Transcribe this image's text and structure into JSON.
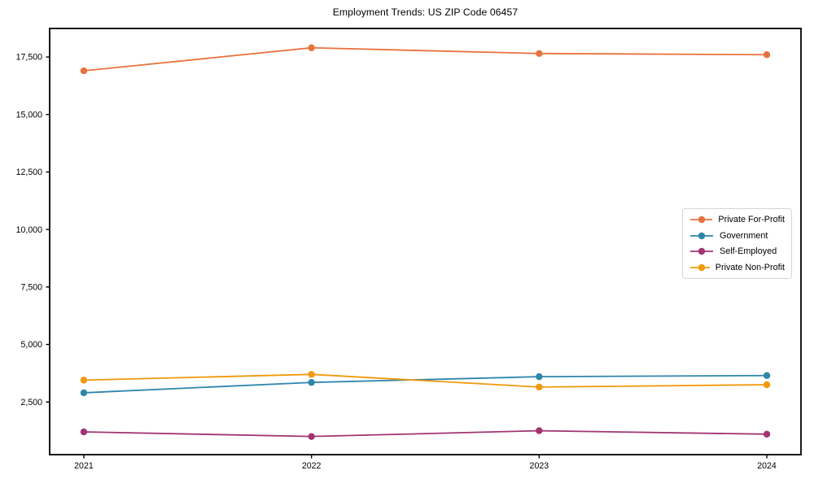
{
  "chart_data": {
    "type": "line",
    "title": "Employment Trends: US ZIP Code 06457",
    "xlabel": "",
    "ylabel": "",
    "x": [
      2021,
      2022,
      2023,
      2024
    ],
    "x_tick_labels": [
      "2021",
      "2022",
      "2023",
      "2024"
    ],
    "series": [
      {
        "name": "Private For-Profit",
        "color": "#e8723d",
        "values": [
          16900,
          17900,
          17650,
          17600
        ]
      },
      {
        "name": "Government",
        "color": "#2e86ab",
        "values": [
          2900,
          3350,
          3600,
          3650
        ]
      },
      {
        "name": "Self-Employed",
        "color": "#a23472",
        "values": [
          1200,
          1000,
          1250,
          1100
        ]
      },
      {
        "name": "Private Non-Profit",
        "color": "#f0990b",
        "values": [
          3450,
          3700,
          3150,
          3250
        ]
      }
    ],
    "yticks": [
      2500,
      5000,
      7500,
      10000,
      12500,
      15000,
      17500
    ],
    "ytick_labels": [
      "2,500",
      "5,000",
      "7,500",
      "10,000",
      "12,500",
      "15,000",
      "17,500"
    ],
    "ylim": [
      210,
      18740
    ],
    "xlim": [
      2020.85,
      2024.15
    ],
    "grid": false,
    "legend_position": "center right",
    "axis_color": "#000000",
    "text_color": "#000000",
    "background_color": "#ffffff"
  }
}
